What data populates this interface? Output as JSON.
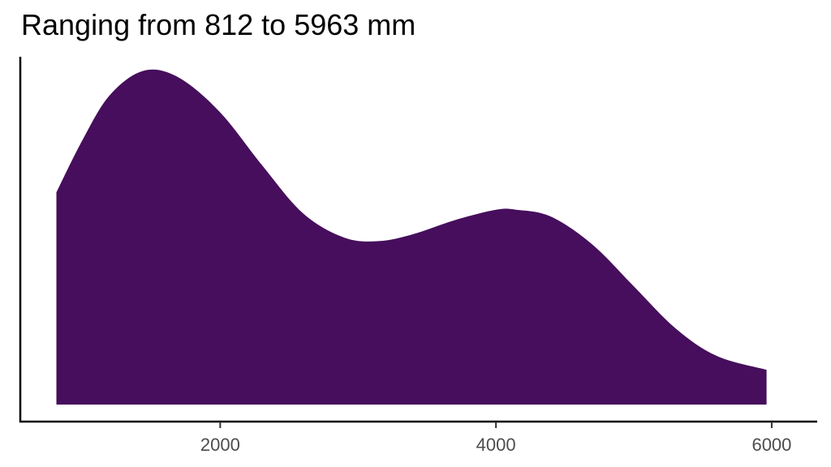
{
  "chart_data": {
    "type": "area",
    "title": "Ranging from 812 to 5963 mm",
    "xlabel": "",
    "ylabel": "",
    "xlim": [
      550,
      6330
    ],
    "ylim": [
      0,
      1.0
    ],
    "x_ticks": [
      2000,
      4000,
      6000
    ],
    "x_tick_labels": [
      "2000",
      "4000",
      "6000"
    ],
    "grid": false,
    "legend": "none",
    "fill_color": "#460E5C",
    "series": [
      {
        "x": [
          812,
          1000,
          1200,
          1446,
          1700,
          2000,
          2300,
          2600,
          2900,
          3150,
          3400,
          3700,
          4000,
          4150,
          4400,
          4700,
          5000,
          5300,
          5600,
          5963
        ],
        "values": [
          0.61,
          0.76,
          0.89,
          0.96,
          0.94,
          0.84,
          0.69,
          0.55,
          0.48,
          0.47,
          0.49,
          0.53,
          0.56,
          0.56,
          0.54,
          0.46,
          0.34,
          0.22,
          0.14,
          0.1
        ]
      }
    ]
  }
}
